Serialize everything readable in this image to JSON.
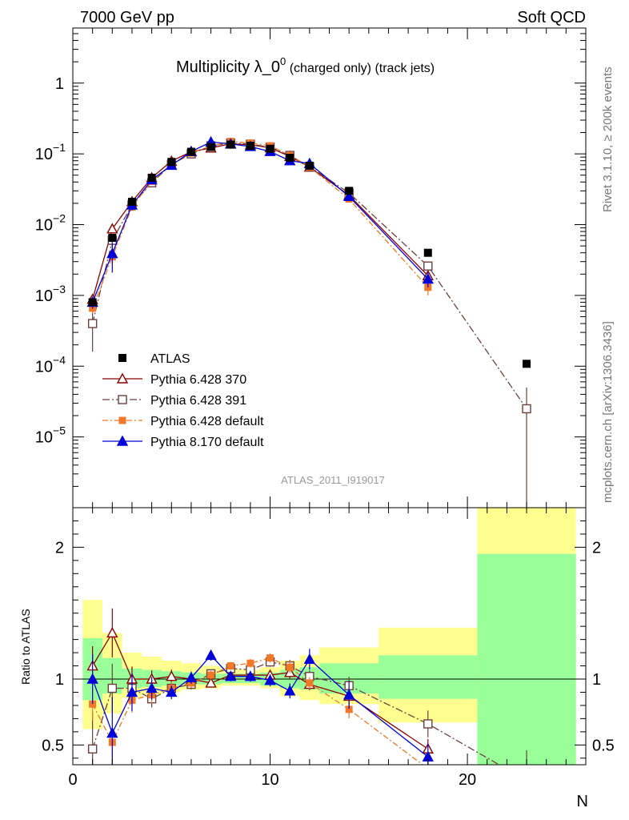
{
  "header": {
    "left": "7000 GeV pp",
    "right": "Soft QCD"
  },
  "side": {
    "rivet": "Rivet 3.1.10, ≥ 200k events",
    "mcplots": "mcplots.cern.ch [arXiv:1306.3436]"
  },
  "chart_data": {
    "type": "scatter",
    "title_main": "Multiplicity λ_0",
    "title_sup": "0",
    "title_sub": " (charged only) (track jets)",
    "analysis": "ATLAS_2011_I919017",
    "xlabel": "N",
    "ratio_ylabel": "Ratio to ATLAS",
    "xlim": [
      0,
      26
    ],
    "ylim": [
      1e-06,
      6
    ],
    "ylog": true,
    "ratio_ylim": [
      0.35,
      2.3
    ],
    "x_ticks": [
      "0",
      "10",
      "20"
    ],
    "y_tick_labels": [
      {
        "base": "1",
        "exp": ""
      },
      {
        "base": "10",
        "exp": "−1"
      },
      {
        "base": "10",
        "exp": "−2"
      },
      {
        "base": "10",
        "exp": "−3"
      },
      {
        "base": "10",
        "exp": "−4"
      },
      {
        "base": "10",
        "exp": "−5"
      }
    ],
    "ratio_ticks": [
      "0.5",
      "1",
      "2"
    ],
    "legend_position": "bottom-left",
    "data": {
      "name": "ATLAS",
      "color": "#000000",
      "x": [
        1,
        2,
        3,
        4,
        5,
        6,
        7,
        8,
        9,
        10,
        11,
        12,
        14,
        18,
        23
      ],
      "y": [
        0.0008,
        0.0065,
        0.021,
        0.046,
        0.077,
        0.107,
        0.125,
        0.135,
        0.13,
        0.118,
        0.088,
        0.068,
        0.03,
        0.004,
        0.000108
      ]
    },
    "band": {
      "x_edges": [
        0.5,
        1.5,
        2.5,
        3.5,
        4.5,
        5.5,
        6.5,
        7.5,
        8.5,
        9.5,
        10.5,
        11.5,
        12.5,
        15.5,
        20.5,
        25.5
      ],
      "inner": [
        [
          0.84,
          1.31
        ],
        [
          0.89,
          1.16
        ],
        [
          0.93,
          1.08
        ],
        [
          0.94,
          1.07
        ],
        [
          0.95,
          1.06
        ],
        [
          0.96,
          1.05
        ],
        [
          0.96,
          1.04
        ],
        [
          0.97,
          1.04
        ],
        [
          0.97,
          1.04
        ],
        [
          0.95,
          1.05
        ],
        [
          0.93,
          1.07
        ],
        [
          0.92,
          1.09
        ],
        [
          0.89,
          1.12
        ],
        [
          0.85,
          1.18
        ],
        [
          0.35,
          1.95
        ]
      ],
      "outer": [
        [
          0.62,
          1.6
        ],
        [
          0.74,
          1.35
        ],
        [
          0.86,
          1.2
        ],
        [
          0.88,
          1.17
        ],
        [
          0.9,
          1.14
        ],
        [
          0.92,
          1.12
        ],
        [
          0.93,
          1.1
        ],
        [
          0.95,
          1.08
        ],
        [
          0.95,
          1.07
        ],
        [
          0.93,
          1.09
        ],
        [
          0.87,
          1.14
        ],
        [
          0.84,
          1.18
        ],
        [
          0.81,
          1.24
        ],
        [
          0.67,
          1.39
        ],
        [
          0.35,
          2.3
        ]
      ]
    },
    "series": [
      {
        "name": "Pythia 6.428 370",
        "color": "#8b0000",
        "marker": "triangle-open",
        "dash": "",
        "x": [
          1,
          2,
          3,
          4,
          5,
          6,
          7,
          8,
          9,
          10,
          11,
          12,
          14,
          18
        ],
        "y": [
          0.00088,
          0.0087,
          0.0211,
          0.046,
          0.079,
          0.107,
          0.121,
          0.139,
          0.134,
          0.122,
          0.092,
          0.065,
          0.026,
          0.0019
        ],
        "err": [
          0.00012,
          0.0012,
          0.002,
          0.003,
          0.004,
          0.004,
          0.004,
          0.004,
          0.004,
          0.004,
          0.004,
          0.003,
          0.002,
          0.0003
        ],
        "ratio": [
          1.1,
          1.35,
          1.0,
          1.0,
          1.02,
          1.0,
          0.97,
          1.03,
          1.03,
          1.03,
          1.05,
          0.96,
          0.87,
          0.47
        ]
      },
      {
        "name": "Pythia 6.428 391",
        "color": "#6b4040",
        "marker": "square-open",
        "dash": "9,3,2,3",
        "x": [
          1,
          2,
          3,
          4,
          5,
          6,
          7,
          8,
          9,
          10,
          11,
          12,
          14,
          18,
          23
        ],
        "y": [
          0.0004,
          0.006,
          0.019,
          0.039,
          0.071,
          0.1,
          0.13,
          0.142,
          0.137,
          0.124,
          0.095,
          0.066,
          0.028,
          0.0026,
          2.5e-05
        ],
        "err": [
          0.00024,
          0.0012,
          0.002,
          0.003,
          0.004,
          0.004,
          0.004,
          0.004,
          0.004,
          0.004,
          0.004,
          0.003,
          0.002,
          0.0004,
          2.5e-05
        ],
        "ratio": [
          0.47,
          0.93,
          0.93,
          0.85,
          0.93,
          0.96,
          1.04,
          1.08,
          1.07,
          1.13,
          1.1,
          1.02,
          0.95,
          0.66,
          0.23
        ]
      },
      {
        "name": "Pythia 6.428 default",
        "color": "#f07828",
        "marker": "square-filled",
        "dash": "7,3,2,3",
        "x": [
          1,
          2,
          3,
          4,
          5,
          6,
          7,
          8,
          9,
          10,
          11,
          12,
          14,
          18
        ],
        "y": [
          0.00066,
          0.0035,
          0.0177,
          0.041,
          0.071,
          0.103,
          0.128,
          0.15,
          0.142,
          0.13,
          0.095,
          0.065,
          0.023,
          0.0013
        ],
        "err": [
          0.0001,
          0.0008,
          0.002,
          0.003,
          0.004,
          0.004,
          0.004,
          0.004,
          0.004,
          0.004,
          0.004,
          0.003,
          0.002,
          0.0003
        ],
        "ratio": [
          0.81,
          0.52,
          0.84,
          0.88,
          0.93,
          0.97,
          1.03,
          1.1,
          1.12,
          1.16,
          1.09,
          0.97,
          0.77,
          0.32
        ]
      },
      {
        "name": "Pythia 8.170 default",
        "color": "#0000d8",
        "marker": "triangle-filled",
        "dash": "",
        "x": [
          1,
          2,
          3,
          4,
          5,
          6,
          7,
          8,
          9,
          10,
          11,
          12,
          14,
          18
        ],
        "y": [
          0.0008,
          0.0039,
          0.0189,
          0.043,
          0.069,
          0.108,
          0.147,
          0.138,
          0.127,
          0.108,
          0.08,
          0.073,
          0.025,
          0.0017
        ],
        "err": [
          0.00015,
          0.0018,
          0.003,
          0.004,
          0.004,
          0.005,
          0.005,
          0.005,
          0.005,
          0.005,
          0.005,
          0.005,
          0.003,
          0.0004
        ],
        "ratio": [
          1.0,
          0.59,
          0.9,
          0.93,
          0.9,
          1.01,
          1.18,
          1.02,
          1.02,
          0.99,
          0.91,
          1.15,
          0.88,
          0.41
        ]
      }
    ]
  }
}
